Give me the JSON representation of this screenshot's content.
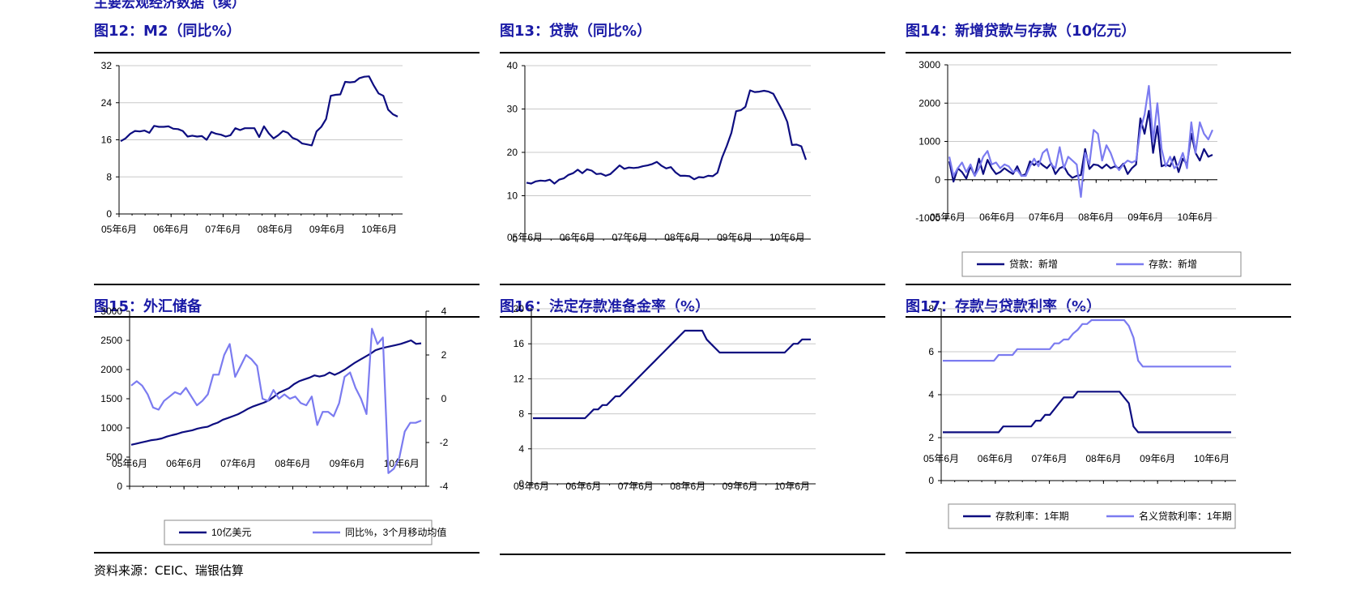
{
  "header_partial": "主要宏观经济数据（续）",
  "source": "资料来源：CEIC、瑞银估算",
  "colors": {
    "dark": "#0d0d80",
    "light": "#7b7bf0",
    "title": "#1a1aa6",
    "grid": "#c8c8c8"
  },
  "chart_data": [
    {
      "id": "m2",
      "type": "line",
      "title": "图12：M2（同比%）",
      "x_ticks": [
        "05年6月",
        "06年6月",
        "07年6月",
        "08年6月",
        "09年6月",
        "10年6月"
      ],
      "ylim": [
        0,
        32
      ],
      "y_ticks": [
        0,
        8,
        16,
        24,
        32
      ],
      "grid": true,
      "series": [
        {
          "values": [
            15.7,
            16.3,
            17.3,
            17.9,
            17.8,
            18.0,
            17.5,
            19.0,
            18.8,
            18.8,
            18.9,
            18.4,
            18.3,
            17.9,
            16.7,
            16.9,
            16.7,
            16.8,
            16.0,
            17.7,
            17.3,
            17.1,
            16.7,
            17.0,
            18.5,
            18.1,
            18.5,
            18.5,
            18.5,
            16.6,
            18.9,
            17.4,
            16.3,
            17.0,
            17.9,
            17.5,
            16.4,
            16.0,
            15.2,
            15.0,
            14.8,
            17.8,
            18.8,
            20.5,
            25.5,
            25.7,
            25.8,
            28.5,
            28.4,
            28.5,
            29.3,
            29.6,
            29.7,
            27.7,
            26.0,
            25.5,
            22.5,
            21.5,
            21.0
          ]
        }
      ]
    },
    {
      "id": "loans",
      "type": "line",
      "title": "图13：贷款（同比%）",
      "x_ticks": [
        "05年6月",
        "06年6月",
        "07年6月",
        "08年6月",
        "09年6月",
        "10年6月"
      ],
      "ylim": [
        0,
        40
      ],
      "y_ticks": [
        0,
        10,
        20,
        30,
        40
      ],
      "grid": true,
      "series": [
        {
          "values": [
            13.0,
            12.8,
            13.3,
            13.5,
            13.4,
            13.7,
            12.8,
            13.7,
            14.0,
            14.8,
            15.2,
            16.0,
            15.2,
            16.1,
            15.8,
            15.0,
            15.1,
            14.6,
            15.0,
            16.0,
            17.0,
            16.2,
            16.5,
            16.4,
            16.5,
            16.8,
            17.0,
            17.3,
            17.8,
            16.9,
            16.3,
            16.6,
            15.4,
            14.6,
            14.6,
            14.5,
            13.8,
            14.3,
            14.2,
            14.6,
            14.5,
            15.3,
            18.8,
            21.5,
            24.5,
            29.5,
            29.7,
            30.5,
            34.3,
            33.9,
            34.0,
            34.2,
            34.0,
            33.5,
            31.5,
            29.5,
            27.0,
            21.7,
            21.8,
            21.4,
            18.3
          ]
        }
      ]
    },
    {
      "id": "newloans",
      "type": "line",
      "title": "图14：新增贷款与存款（10亿元）",
      "x_ticks": [
        "05年6月",
        "06年6月",
        "07年6月",
        "08年6月",
        "09年6月",
        "10年6月"
      ],
      "ylim": [
        -1000,
        3000
      ],
      "y_ticks": [
        -1000,
        0,
        1000,
        2000,
        3000
      ],
      "grid": true,
      "legend": {
        "placement": "bottom",
        "entries": [
          "贷款：新增",
          "存款：新增"
        ]
      },
      "series": [
        {
          "name": "贷款：新增",
          "values": [
            480,
            -50,
            300,
            200,
            30,
            350,
            100,
            550,
            150,
            520,
            300,
            150,
            200,
            300,
            220,
            150,
            350,
            100,
            150,
            480,
            380,
            480,
            380,
            300,
            430,
            150,
            300,
            350,
            150,
            50,
            100,
            120,
            800,
            280,
            400,
            380,
            300,
            400,
            300,
            350,
            300,
            420,
            150,
            300,
            400,
            1600,
            1200,
            1800,
            700,
            1400,
            350,
            400,
            350,
            600,
            200,
            550,
            400,
            1200,
            700,
            500,
            800,
            600,
            650
          ]
        },
        {
          "name": "存款：新增",
          "values": [
            600,
            100,
            300,
            450,
            200,
            400,
            100,
            300,
            600,
            750,
            400,
            450,
            300,
            400,
            350,
            200,
            250,
            100,
            100,
            350,
            550,
            350,
            700,
            800,
            400,
            300,
            850,
            300,
            600,
            500,
            400,
            -450,
            700,
            400,
            1300,
            1200,
            500,
            900,
            700,
            400,
            250,
            400,
            500,
            450,
            500,
            1300,
            1700,
            2450,
            1000,
            2000,
            800,
            350,
            600,
            300,
            400,
            700,
            300,
            1500,
            700,
            1500,
            1200,
            1050,
            1300
          ]
        }
      ]
    },
    {
      "id": "fx",
      "type": "line",
      "title": "图15：外汇储备",
      "x_ticks": [
        "05年6月",
        "06年6月",
        "07年6月",
        "08年6月",
        "09年6月",
        "10年6月"
      ],
      "ylim_left": [
        0,
        3000
      ],
      "y_ticks_left": [
        0,
        500,
        1000,
        1500,
        2000,
        2500,
        3000
      ],
      "ylim_right": [
        -4,
        4
      ],
      "y_ticks_right": [
        -4,
        -2,
        0,
        2,
        4
      ],
      "grid": false,
      "legend": {
        "placement": "bottom",
        "entries": [
          "10亿美元",
          "同比%，3个月移动均值"
        ]
      },
      "series": [
        {
          "name": "10亿美元",
          "axis": "left",
          "values": [
            711,
            730,
            752,
            770,
            790,
            801,
            820,
            852,
            875,
            896,
            925,
            941,
            960,
            988,
            1005,
            1020,
            1060,
            1090,
            1140,
            1170,
            1202,
            1235,
            1280,
            1330,
            1370,
            1400,
            1430,
            1470,
            1530,
            1600,
            1640,
            1680,
            1750,
            1800,
            1830,
            1860,
            1900,
            1880,
            1900,
            1950,
            1910,
            1950,
            2000,
            2060,
            2120,
            2170,
            2220,
            2270,
            2330,
            2360,
            2380,
            2400,
            2420,
            2440,
            2470,
            2500,
            2440,
            2450
          ]
        },
        {
          "name": "同比%，3个月移动均值",
          "axis": "right",
          "values": [
            0.6,
            0.8,
            0.6,
            0.2,
            -0.4,
            -0.5,
            -0.1,
            0.1,
            0.3,
            0.2,
            0.5,
            0.1,
            -0.3,
            -0.1,
            0.2,
            1.1,
            1.1,
            2.0,
            2.5,
            1.0,
            1.5,
            2.0,
            1.8,
            1.5,
            0.0,
            -0.1,
            0.4,
            0.0,
            0.2,
            0.0,
            0.1,
            -0.2,
            -0.3,
            0.1,
            -1.2,
            -0.6,
            -0.6,
            -0.8,
            -0.2,
            1.0,
            1.2,
            0.5,
            0.0,
            -0.7,
            3.2,
            2.5,
            2.8,
            -3.4,
            -3.2,
            -2.7,
            -1.5,
            -1.1,
            -1.1,
            -1.0
          ]
        }
      ]
    },
    {
      "id": "rrr",
      "type": "line",
      "title": "图16：法定存款准备金率（%）",
      "x_ticks": [
        "05年6月",
        "06年6月",
        "07年6月",
        "08年6月",
        "09年6月",
        "10年6月"
      ],
      "ylim": [
        0,
        20
      ],
      "y_ticks": [
        0,
        4,
        8,
        12,
        16,
        20
      ],
      "grid": true,
      "series": [
        {
          "values": [
            7.5,
            7.5,
            7.5,
            7.5,
            7.5,
            7.5,
            7.5,
            7.5,
            7.5,
            7.5,
            7.5,
            7.5,
            7.5,
            8.0,
            8.5,
            8.5,
            9.0,
            9.0,
            9.5,
            10.0,
            10.0,
            10.5,
            11.0,
            11.5,
            12.0,
            12.5,
            13.0,
            13.5,
            14.0,
            14.5,
            15.0,
            15.5,
            16.0,
            16.5,
            17.0,
            17.5,
            17.5,
            17.5,
            17.5,
            17.5,
            16.5,
            16.0,
            15.5,
            15.0,
            15.0,
            15.0,
            15.0,
            15.0,
            15.0,
            15.0,
            15.0,
            15.0,
            15.0,
            15.0,
            15.0,
            15.0,
            15.0,
            15.0,
            15.0,
            15.5,
            16.0,
            16.0,
            16.5,
            16.5,
            16.5
          ]
        }
      ]
    },
    {
      "id": "rates",
      "type": "line",
      "title": "图17：存款与贷款利率（%）",
      "x_ticks": [
        "05年6月",
        "06年6月",
        "07年6月",
        "08年6月",
        "09年6月",
        "10年6月"
      ],
      "ylim": [
        0,
        8
      ],
      "y_ticks": [
        0,
        2,
        4,
        6,
        8
      ],
      "grid": true,
      "legend": {
        "placement": "bottom",
        "entries": [
          "存款利率：1年期",
          "名义贷款利率：1年期"
        ]
      },
      "series": [
        {
          "name": "存款利率：1年期",
          "values": [
            2.25,
            2.25,
            2.25,
            2.25,
            2.25,
            2.25,
            2.25,
            2.25,
            2.25,
            2.25,
            2.25,
            2.25,
            2.25,
            2.52,
            2.52,
            2.52,
            2.52,
            2.52,
            2.52,
            2.52,
            2.79,
            2.79,
            3.06,
            3.06,
            3.33,
            3.6,
            3.87,
            3.87,
            3.87,
            4.14,
            4.14,
            4.14,
            4.14,
            4.14,
            4.14,
            4.14,
            4.14,
            4.14,
            4.14,
            3.87,
            3.6,
            2.52,
            2.25,
            2.25,
            2.25,
            2.25,
            2.25,
            2.25,
            2.25,
            2.25,
            2.25,
            2.25,
            2.25,
            2.25,
            2.25,
            2.25,
            2.25,
            2.25,
            2.25,
            2.25,
            2.25,
            2.25,
            2.25
          ]
        },
        {
          "name": "名义贷款利率：1年期",
          "values": [
            5.58,
            5.58,
            5.58,
            5.58,
            5.58,
            5.58,
            5.58,
            5.58,
            5.58,
            5.58,
            5.58,
            5.58,
            5.85,
            5.85,
            5.85,
            5.85,
            6.12,
            6.12,
            6.12,
            6.12,
            6.12,
            6.12,
            6.12,
            6.12,
            6.39,
            6.39,
            6.57,
            6.57,
            6.84,
            7.02,
            7.29,
            7.29,
            7.47,
            7.47,
            7.47,
            7.47,
            7.47,
            7.47,
            7.47,
            7.47,
            7.2,
            6.66,
            5.58,
            5.31,
            5.31,
            5.31,
            5.31,
            5.31,
            5.31,
            5.31,
            5.31,
            5.31,
            5.31,
            5.31,
            5.31,
            5.31,
            5.31,
            5.31,
            5.31,
            5.31,
            5.31,
            5.31,
            5.31
          ]
        }
      ]
    }
  ]
}
